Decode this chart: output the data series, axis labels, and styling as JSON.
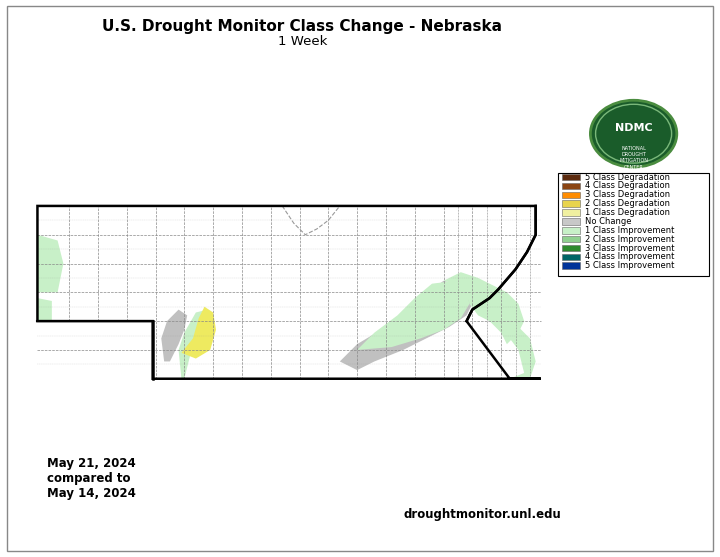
{
  "title_line1": "U.S. Drought Monitor Class Change - Nebraska",
  "title_line2": "1 Week",
  "date_text": "May 21, 2024\ncompared to\nMay 14, 2024",
  "website_text": "droughtmonitor.unl.edu",
  "legend_items": [
    {
      "label": "5 Class Degradation",
      "color": "#5C2A0E"
    },
    {
      "label": "4 Class Degradation",
      "color": "#8B4513"
    },
    {
      "label": "3 Class Degradation",
      "color": "#FF8C00"
    },
    {
      "label": "2 Class Degradation",
      "color": "#E8D44D"
    },
    {
      "label": "1 Class Degradation",
      "color": "#F0F0A0"
    },
    {
      "label": "No Change",
      "color": "#C8C8C8"
    },
    {
      "label": "1 Class Improvement",
      "color": "#C8F0C8"
    },
    {
      "label": "2 Class Improvement",
      "color": "#90D090"
    },
    {
      "label": "3 Class Improvement",
      "color": "#2E8B2E"
    },
    {
      "label": "4 Class Improvement",
      "color": "#006666"
    },
    {
      "label": "5 Class Improvement",
      "color": "#003399"
    }
  ],
  "bg_color": "#FFFFFF",
  "fig_width": 7.2,
  "fig_height": 5.57,
  "xlim": [
    -104.2,
    -95.2
  ],
  "ylim": [
    39.7,
    43.2
  ],
  "ne_state": [
    [
      -104.05,
      43.0
    ],
    [
      -103.0,
      43.0
    ],
    [
      -101.0,
      43.0
    ],
    [
      -99.5,
      43.0
    ],
    [
      -98.0,
      43.0
    ],
    [
      -97.0,
      43.0
    ],
    [
      -96.0,
      43.0
    ],
    [
      -95.4,
      43.0
    ],
    [
      -95.4,
      42.5
    ],
    [
      -95.55,
      42.2
    ],
    [
      -95.75,
      41.9
    ],
    [
      -96.05,
      41.55
    ],
    [
      -96.2,
      41.4
    ],
    [
      -96.35,
      41.3
    ],
    [
      -96.5,
      41.2
    ],
    [
      -96.6,
      41.0
    ],
    [
      -95.85,
      40.0
    ],
    [
      -95.7,
      40.0
    ],
    [
      -95.55,
      40.0
    ],
    [
      -95.31,
      40.0
    ],
    [
      -97.0,
      40.0
    ],
    [
      -99.0,
      40.0
    ],
    [
      -100.0,
      40.0
    ],
    [
      -101.0,
      40.0
    ],
    [
      -102.05,
      40.0
    ],
    [
      -102.05,
      41.0
    ],
    [
      -104.05,
      41.0
    ],
    [
      -104.05,
      43.0
    ]
  ],
  "north_border_notch": [
    [
      -99.8,
      43.0
    ],
    [
      -99.6,
      42.7
    ],
    [
      -99.4,
      42.5
    ],
    [
      -99.2,
      42.6
    ],
    [
      -99.0,
      42.75
    ],
    [
      -98.8,
      43.0
    ]
  ],
  "east_border": [
    [
      -96.6,
      41.0
    ],
    [
      -96.5,
      41.2
    ],
    [
      -96.35,
      41.3
    ],
    [
      -96.2,
      41.4
    ],
    [
      -96.05,
      41.55
    ],
    [
      -95.75,
      41.9
    ],
    [
      -95.55,
      42.2
    ],
    [
      -95.4,
      42.5
    ],
    [
      -95.4,
      43.0
    ]
  ],
  "county_lons": [
    -103.5,
    -103.0,
    -102.5,
    -102.0,
    -101.5,
    -101.0,
    -100.5,
    -100.0,
    -99.5,
    -99.0,
    -98.5,
    -98.0,
    -97.5,
    -97.0,
    -96.5,
    -96.0
  ],
  "county_lats": [
    40.5,
    41.0,
    41.5,
    42.0,
    42.5
  ],
  "panhandle_lons": [
    -103.5,
    -103.0,
    -102.5
  ],
  "regions": {
    "light_green_west": {
      "color": "#C8F0C8",
      "polygons": [
        [
          [
            -104.05,
            41.5
          ],
          [
            -104.05,
            42.5
          ],
          [
            -103.7,
            42.4
          ],
          [
            -103.6,
            42.0
          ],
          [
            -103.7,
            41.5
          ]
        ],
        [
          [
            -104.05,
            41.0
          ],
          [
            -104.05,
            41.4
          ],
          [
            -103.8,
            41.35
          ],
          [
            -103.8,
            41.0
          ]
        ]
      ]
    },
    "light_green_sc": {
      "color": "#C8F0C8",
      "polygons": [
        [
          [
            -101.5,
            40.0
          ],
          [
            -101.4,
            40.4
          ],
          [
            -101.2,
            40.7
          ],
          [
            -101.0,
            41.0
          ],
          [
            -101.1,
            41.2
          ],
          [
            -101.3,
            41.15
          ],
          [
            -101.5,
            40.8
          ],
          [
            -101.6,
            40.5
          ],
          [
            -101.55,
            40.0
          ]
        ]
      ]
    },
    "gray_west": {
      "color": "#C0C0C0",
      "polygons": [
        [
          [
            -101.75,
            40.3
          ],
          [
            -101.6,
            40.6
          ],
          [
            -101.5,
            40.85
          ],
          [
            -101.45,
            41.1
          ],
          [
            -101.6,
            41.2
          ],
          [
            -101.8,
            41.0
          ],
          [
            -101.9,
            40.7
          ],
          [
            -101.85,
            40.3
          ]
        ]
      ]
    },
    "yellow_blob": {
      "color": "#EEEA60",
      "polygons": [
        [
          [
            -101.55,
            40.45
          ],
          [
            -101.35,
            40.7
          ],
          [
            -101.25,
            41.05
          ],
          [
            -101.15,
            41.25
          ],
          [
            -101.0,
            41.15
          ],
          [
            -100.95,
            40.85
          ],
          [
            -101.05,
            40.5
          ],
          [
            -101.3,
            40.35
          ]
        ]
      ]
    },
    "light_green_ec": {
      "color": "#C8F0C8",
      "polygons": [
        [
          [
            -98.5,
            40.5
          ],
          [
            -98.2,
            40.8
          ],
          [
            -97.8,
            41.1
          ],
          [
            -97.5,
            41.4
          ],
          [
            -97.2,
            41.65
          ],
          [
            -96.8,
            41.7
          ],
          [
            -96.6,
            41.55
          ],
          [
            -96.55,
            41.3
          ],
          [
            -96.7,
            41.05
          ],
          [
            -97.0,
            40.85
          ],
          [
            -97.4,
            40.7
          ],
          [
            -97.9,
            40.55
          ]
        ],
        [
          [
            -95.85,
            40.0
          ],
          [
            -95.5,
            40.0
          ],
          [
            -95.4,
            40.3
          ],
          [
            -95.5,
            40.7
          ],
          [
            -95.8,
            41.0
          ],
          [
            -96.1,
            41.2
          ],
          [
            -96.4,
            41.5
          ],
          [
            -96.5,
            41.7
          ],
          [
            -96.6,
            41.55
          ],
          [
            -96.55,
            41.3
          ],
          [
            -96.4,
            41.1
          ],
          [
            -96.0,
            40.9
          ],
          [
            -95.7,
            40.5
          ],
          [
            -95.6,
            40.1
          ]
        ]
      ]
    },
    "gray_east": {
      "color": "#C0C0C0",
      "polygons": [
        [
          [
            -98.8,
            40.3
          ],
          [
            -98.5,
            40.6
          ],
          [
            -98.0,
            40.9
          ],
          [
            -97.5,
            41.2
          ],
          [
            -97.2,
            41.55
          ],
          [
            -97.0,
            41.7
          ],
          [
            -96.8,
            41.65
          ],
          [
            -96.6,
            41.5
          ],
          [
            -96.5,
            41.3
          ],
          [
            -96.6,
            41.1
          ],
          [
            -96.9,
            40.9
          ],
          [
            -97.3,
            40.7
          ],
          [
            -97.7,
            40.5
          ],
          [
            -98.2,
            40.3
          ],
          [
            -98.5,
            40.15
          ]
        ]
      ]
    },
    "light_green_ne_corner": {
      "color": "#C8F0C8",
      "polygons": [
        [
          [
            -97.0,
            41.7
          ],
          [
            -96.7,
            41.85
          ],
          [
            -96.4,
            41.75
          ],
          [
            -96.1,
            41.6
          ],
          [
            -95.9,
            41.5
          ],
          [
            -95.7,
            41.3
          ],
          [
            -95.6,
            41.0
          ],
          [
            -95.7,
            40.8
          ],
          [
            -95.9,
            40.6
          ],
          [
            -96.0,
            40.8
          ],
          [
            -96.2,
            41.0
          ],
          [
            -96.5,
            41.25
          ],
          [
            -96.65,
            41.5
          ],
          [
            -96.8,
            41.65
          ]
        ]
      ]
    }
  }
}
